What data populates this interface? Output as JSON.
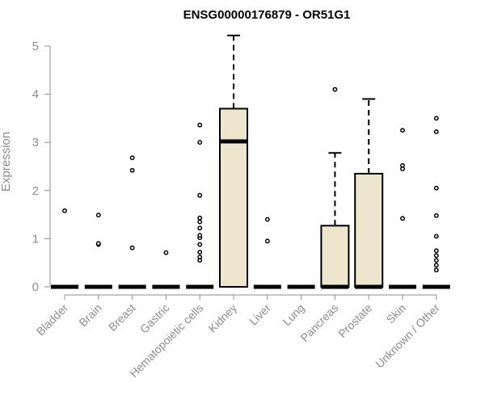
{
  "chart_data": {
    "type": "boxplot",
    "title": "ENSG00000176879 - OR51G1",
    "xlabel": "",
    "ylabel": "Expression",
    "ylim": [
      0,
      5.2
    ],
    "yticks": [
      0,
      1,
      2,
      3,
      4,
      5
    ],
    "grid": false,
    "box_fill": "#ede6cc",
    "categories": [
      "Bladder",
      "Brain",
      "Breast",
      "Gastric",
      "Hematopoietic cells",
      "Kidney",
      "Liver",
      "Lung",
      "Pancreas",
      "Prostate",
      "Skin",
      "Unknown / Other"
    ],
    "boxes": [
      {
        "category": "Bladder",
        "min": 0,
        "q1": 0,
        "median": 0,
        "q3": 0,
        "max": 0,
        "outliers": [
          1.58
        ]
      },
      {
        "category": "Brain",
        "min": 0,
        "q1": 0,
        "median": 0,
        "q3": 0,
        "max": 0,
        "outliers": [
          0.88,
          0.9,
          1.49
        ]
      },
      {
        "category": "Breast",
        "min": 0,
        "q1": 0,
        "median": 0,
        "q3": 0,
        "max": 0,
        "outliers": [
          0.81,
          2.42,
          2.68
        ]
      },
      {
        "category": "Gastric",
        "min": 0,
        "q1": 0,
        "median": 0,
        "q3": 0,
        "max": 0,
        "outliers": [
          0.71
        ]
      },
      {
        "category": "Hematopoietic cells",
        "min": 0,
        "q1": 0,
        "median": 0,
        "q3": 0,
        "max": 0,
        "outliers": [
          0.55,
          0.62,
          0.72,
          0.88,
          1.02,
          1.07,
          1.22,
          1.35,
          1.43,
          1.9,
          3.0,
          3.36
        ]
      },
      {
        "category": "Kidney",
        "min": 0,
        "q1": 0,
        "median": 3.02,
        "q3": 3.7,
        "max": 5.22,
        "outliers": []
      },
      {
        "category": "Liver",
        "min": 0,
        "q1": 0,
        "median": 0,
        "q3": 0,
        "max": 0,
        "outliers": [
          0.95,
          1.4
        ]
      },
      {
        "category": "Lung",
        "min": 0,
        "q1": 0,
        "median": 0,
        "q3": 0,
        "max": 0,
        "outliers": []
      },
      {
        "category": "Pancreas",
        "min": 0,
        "q1": 0,
        "median": 0,
        "q3": 1.27,
        "max": 2.78,
        "outliers": [
          4.1
        ]
      },
      {
        "category": "Prostate",
        "min": 0,
        "q1": 0,
        "median": 0,
        "q3": 2.35,
        "max": 3.9,
        "outliers": []
      },
      {
        "category": "Skin",
        "min": 0,
        "q1": 0,
        "median": 0,
        "q3": 0,
        "max": 0,
        "outliers": [
          1.42,
          2.45,
          2.52,
          3.25
        ]
      },
      {
        "category": "Unknown / Other",
        "min": 0,
        "q1": 0,
        "median": 0,
        "q3": 0,
        "max": 0,
        "outliers": [
          0.35,
          0.45,
          0.55,
          0.65,
          0.75,
          1.05,
          1.48,
          2.05,
          3.22,
          3.5
        ]
      }
    ]
  }
}
